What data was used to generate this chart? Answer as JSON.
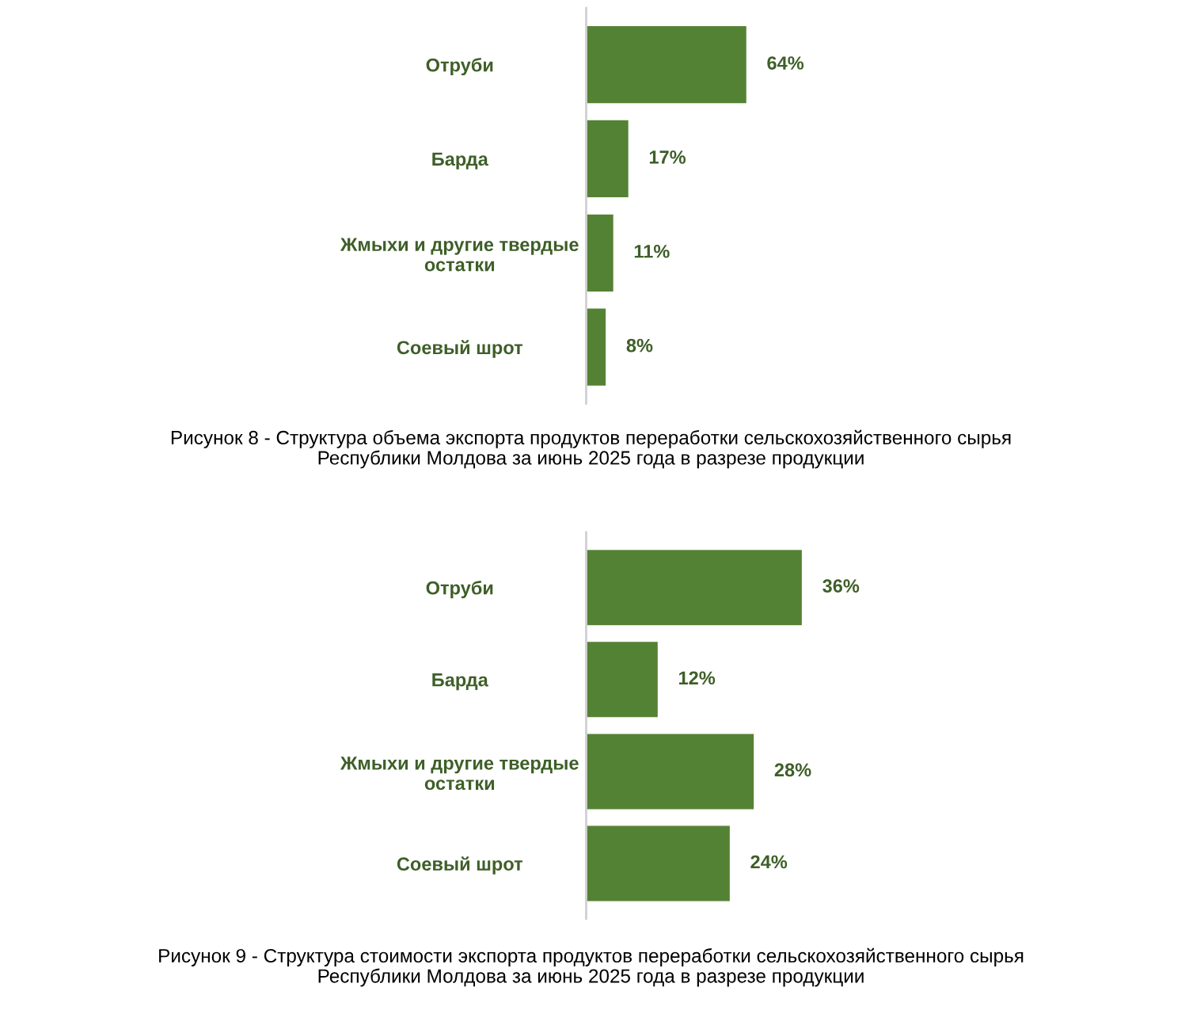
{
  "chart_data": [
    {
      "type": "bar",
      "orientation": "horizontal",
      "categories": [
        "Отруби",
        "Барда",
        "Жмыхи и другие твердые\nостатки",
        "Соевый шрот"
      ],
      "values": [
        64,
        17,
        11,
        8
      ],
      "color": "#548235",
      "value_labels": [
        "64%",
        "17%",
        "11%",
        "8%"
      ],
      "tick_labels": "y",
      "grid": false,
      "annotations": [
        "Рисунок 8 - Структура объема экспорта продуктов переработки сельскохозяйственного сырья\nРеспублики Молдова за июнь 2025 года в разрезе продукции"
      ]
    },
    {
      "type": "bar",
      "orientation": "horizontal",
      "categories": [
        "Отруби",
        "Барда",
        "Жмыхи и другие твердые\nостатки",
        "Соевый шрот"
      ],
      "values": [
        36,
        12,
        28,
        24
      ],
      "color": "#548235",
      "value_labels": [
        "36%",
        "12%",
        "28%",
        "24%"
      ],
      "tick_labels": "y",
      "grid": false,
      "annotations": [
        "Рисунок 9 - Структура стоимости экспорта продуктов переработки сельскохозяйственного сырья\nРеспублики Молдова за июнь 2025 года в разрезе продукции"
      ]
    }
  ]
}
